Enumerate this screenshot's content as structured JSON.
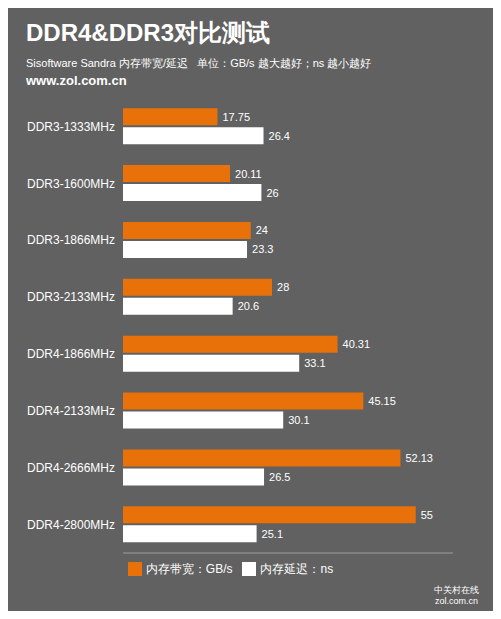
{
  "chart_data": {
    "type": "bar",
    "orientation": "horizontal",
    "title": "DDR4&DDR3对比测试",
    "subtitle": "Sisoftware Sandra 内存带宽/延迟   单位：GB/s 越大越好；ns 越小越好",
    "annotations": [
      "www.zol.com.cn",
      "中关村在线\nzol.com.cn"
    ],
    "categories": [
      "DDR3-1333MHz",
      "DDR3-1600MHz",
      "DDR3-1866MHz",
      "DDR3-2133MHz",
      "DDR4-1866MHz",
      "DDR4-2133MHz",
      "DDR4-2666MHz",
      "DDR4-2800MHz"
    ],
    "series": [
      {
        "name": "内存带宽：GB/s",
        "color": "#E8710A",
        "values": [
          17.75,
          20.11,
          24,
          28,
          40.31,
          45.15,
          52.13,
          55
        ]
      },
      {
        "name": "内存延迟：ns",
        "color": "#FFFFFF",
        "values": [
          26.4,
          26,
          23.3,
          20.6,
          33.1,
          30.1,
          26.5,
          25.1
        ]
      }
    ],
    "xlim": [
      0,
      62
    ],
    "data_labels": true,
    "tick_labels": "y",
    "legend": "bottom",
    "grid": false
  }
}
